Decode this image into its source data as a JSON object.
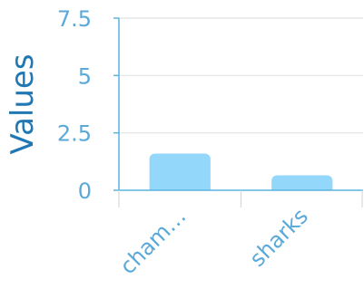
{
  "chart_data": {
    "type": "bar",
    "categories": [
      "cham…",
      "sharks"
    ],
    "values": [
      1.6,
      0.65
    ],
    "title": "",
    "xlabel": "",
    "ylabel": "Values",
    "ylim": [
      0,
      7.5
    ],
    "yticks": [
      "0",
      "2.5",
      "5",
      "7.5"
    ],
    "ytick_values": [
      0,
      2.5,
      5,
      7.5
    ],
    "grid": true,
    "legend": "none"
  },
  "colors": {
    "bar": "#93d8fb",
    "axis": "#5ab4e0",
    "tick_label": "#5aa9d8",
    "ylabel": "#1f78b4",
    "grid": "#e2e2e2"
  }
}
